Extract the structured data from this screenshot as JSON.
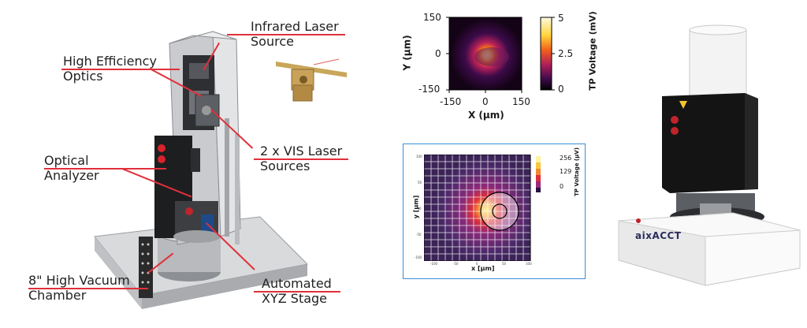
{
  "callouts": {
    "infrared": "Infrared Laser\nSource",
    "optics": "High Efficiency\nOptics",
    "vis": "2 x VIS Laser\nSources",
    "analyzer": "Optical\nAnalyzer",
    "chamber": "8\" High Vacuum\nChamber",
    "stage": "Automated\nXYZ Stage"
  },
  "heatmap_top": {
    "ylabel": "Y (µm)",
    "xlabel": "X (µm)",
    "xticks": [
      "-150",
      "0",
      "150"
    ],
    "yticks": [
      "150",
      "0",
      "-150"
    ],
    "colorbar_label": "TP Voltage (mV)",
    "colorbar_ticks": [
      "5",
      "2.5",
      "0"
    ]
  },
  "heatmap_bottom": {
    "ylabel": "y [µm]",
    "xlabel": "x [µm]",
    "colorbar_label": "TP Voltage (µV)",
    "colorbar_ticks": [
      "256",
      "129",
      "0"
    ],
    "xticks": [
      "-100",
      "-50",
      "0",
      "50",
      "100"
    ],
    "yticks": [
      "100",
      "50",
      "0",
      "-50",
      "-100"
    ]
  },
  "device_brand": {
    "logo_text": "aixACCT"
  },
  "colors": {
    "accent_red": "#e0303a",
    "frame_blue": "#3a8fd8"
  }
}
